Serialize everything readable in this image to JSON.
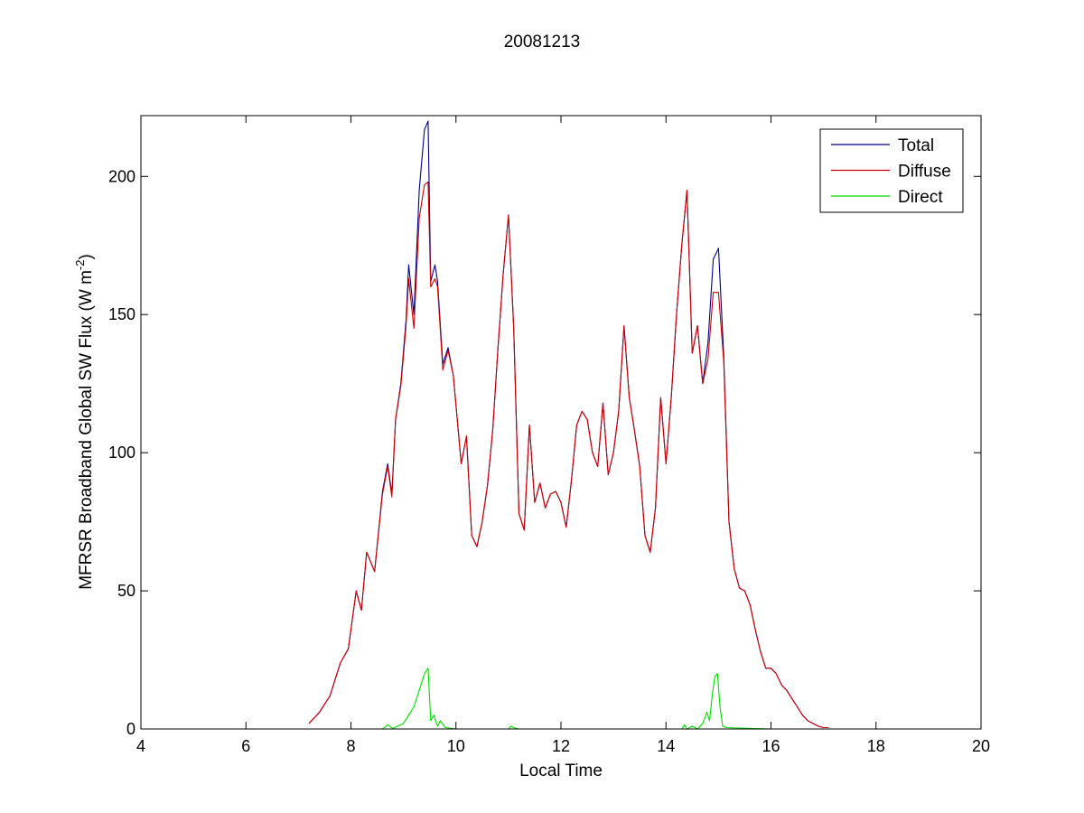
{
  "figure": {
    "background": "#ffffff"
  },
  "chart_data": {
    "type": "line",
    "title": "20081213",
    "xlabel": "Local Time",
    "ylabel_main": "MFRSR Broadband Global SW Flux (W m",
    "ylabel_sup": "-2",
    "ylabel_close": ")",
    "xlim": [
      4,
      20
    ],
    "ylim": [
      0,
      222
    ],
    "xticks": [
      4,
      6,
      8,
      10,
      12,
      14,
      16,
      18,
      20
    ],
    "yticks": [
      0,
      50,
      100,
      150,
      200
    ],
    "grid": false,
    "legend_position": "top-right",
    "series": [
      {
        "name": "Total",
        "color": "#00008b",
        "x": [
          7.2,
          7.4,
          7.6,
          7.8,
          7.95,
          8.1,
          8.2,
          8.3,
          8.45,
          8.6,
          8.7,
          8.78,
          8.85,
          8.95,
          9.05,
          9.1,
          9.2,
          9.3,
          9.4,
          9.47,
          9.52,
          9.6,
          9.65,
          9.75,
          9.85,
          9.95,
          10.1,
          10.2,
          10.3,
          10.4,
          10.5,
          10.6,
          10.7,
          10.8,
          10.9,
          11.0,
          11.1,
          11.2,
          11.3,
          11.4,
          11.5,
          11.6,
          11.7,
          11.8,
          11.9,
          12.0,
          12.1,
          12.2,
          12.3,
          12.4,
          12.5,
          12.6,
          12.7,
          12.8,
          12.9,
          13.0,
          13.1,
          13.2,
          13.3,
          13.4,
          13.5,
          13.6,
          13.7,
          13.8,
          13.9,
          14.0,
          14.1,
          14.2,
          14.3,
          14.4,
          14.5,
          14.6,
          14.7,
          14.8,
          14.9,
          15.0,
          15.1,
          15.2,
          15.3,
          15.4,
          15.5,
          15.6,
          15.7,
          15.8,
          15.9,
          16.0,
          16.1,
          16.2,
          16.3,
          16.4,
          16.5,
          16.6,
          16.7,
          16.8,
          16.9,
          17.0,
          17.1
        ],
        "y": [
          2,
          6,
          12,
          24,
          29,
          50,
          43,
          64,
          57,
          86,
          96,
          85,
          112,
          125,
          148,
          168,
          150,
          195,
          217,
          220,
          162,
          168,
          162,
          132,
          138,
          128,
          96,
          106,
          70,
          66,
          75,
          88,
          108,
          138,
          165,
          186,
          145,
          78,
          72,
          110,
          82,
          89,
          80,
          85,
          86,
          82,
          73,
          90,
          110,
          115,
          112,
          100,
          95,
          118,
          92,
          100,
          115,
          146,
          120,
          108,
          95,
          70,
          64,
          80,
          120,
          96,
          120,
          150,
          175,
          195,
          136,
          146,
          125,
          140,
          170,
          174,
          135,
          75,
          58,
          51,
          50,
          45,
          36,
          28,
          22,
          22,
          20,
          16,
          14,
          11,
          8,
          5,
          3,
          2,
          1,
          0.5,
          0.5
        ]
      },
      {
        "name": "Diffuse",
        "color": "#cc0000",
        "x": [
          7.2,
          7.4,
          7.6,
          7.8,
          7.95,
          8.1,
          8.2,
          8.3,
          8.45,
          8.6,
          8.7,
          8.78,
          8.85,
          8.95,
          9.05,
          9.1,
          9.2,
          9.3,
          9.4,
          9.47,
          9.52,
          9.6,
          9.65,
          9.75,
          9.85,
          9.95,
          10.1,
          10.2,
          10.3,
          10.4,
          10.5,
          10.6,
          10.7,
          10.8,
          10.9,
          11.0,
          11.1,
          11.2,
          11.3,
          11.4,
          11.5,
          11.6,
          11.7,
          11.8,
          11.9,
          12.0,
          12.1,
          12.2,
          12.3,
          12.4,
          12.5,
          12.6,
          12.7,
          12.8,
          12.9,
          13.0,
          13.1,
          13.2,
          13.3,
          13.4,
          13.5,
          13.6,
          13.7,
          13.8,
          13.9,
          14.0,
          14.1,
          14.2,
          14.3,
          14.4,
          14.5,
          14.6,
          14.7,
          14.8,
          14.9,
          15.0,
          15.1,
          15.2,
          15.3,
          15.4,
          15.5,
          15.6,
          15.7,
          15.8,
          15.9,
          16.0,
          16.1,
          16.2,
          16.3,
          16.4,
          16.5,
          16.6,
          16.7,
          16.8,
          16.9,
          17.0,
          17.1
        ],
        "y": [
          2,
          6,
          12,
          24,
          29,
          50,
          43,
          64,
          57,
          85,
          95,
          84,
          112,
          124,
          146,
          163,
          145,
          185,
          197,
          198,
          160,
          163,
          160,
          130,
          137,
          128,
          96,
          106,
          70,
          66,
          75,
          88,
          108,
          138,
          165,
          186,
          145,
          78,
          72,
          110,
          82,
          89,
          80,
          85,
          86,
          82,
          73,
          90,
          110,
          115,
          112,
          100,
          95,
          118,
          92,
          100,
          115,
          146,
          120,
          108,
          95,
          70,
          64,
          80,
          120,
          96,
          120,
          150,
          175,
          195,
          136,
          146,
          125,
          134,
          158,
          158,
          133,
          75,
          58,
          51,
          50,
          45,
          36,
          28,
          22,
          22,
          20,
          16,
          14,
          11,
          8,
          5,
          3,
          2,
          1,
          0.5,
          0.5
        ]
      },
      {
        "name": "Direct",
        "color": "#00dd00",
        "x": [
          7.2,
          8.6,
          8.7,
          8.8,
          9.0,
          9.1,
          9.2,
          9.3,
          9.4,
          9.47,
          9.52,
          9.58,
          9.65,
          9.7,
          9.8,
          10.0,
          11.0,
          11.05,
          11.1,
          11.2,
          12.0,
          13.0,
          14.0,
          14.3,
          14.35,
          14.4,
          14.5,
          14.6,
          14.7,
          14.78,
          14.83,
          14.88,
          14.93,
          14.98,
          15.03,
          15.08,
          15.15,
          16.0,
          17.0
        ],
        "y": [
          0,
          0,
          1.5,
          0.2,
          2,
          5,
          8,
          14,
          20,
          22,
          3,
          5,
          1,
          3,
          0.5,
          0,
          0,
          1,
          0.5,
          0,
          0,
          0,
          0,
          0,
          1.5,
          0,
          1,
          0,
          2,
          6,
          3,
          12,
          19,
          20,
          8,
          1,
          0.5,
          0,
          0
        ]
      }
    ]
  }
}
